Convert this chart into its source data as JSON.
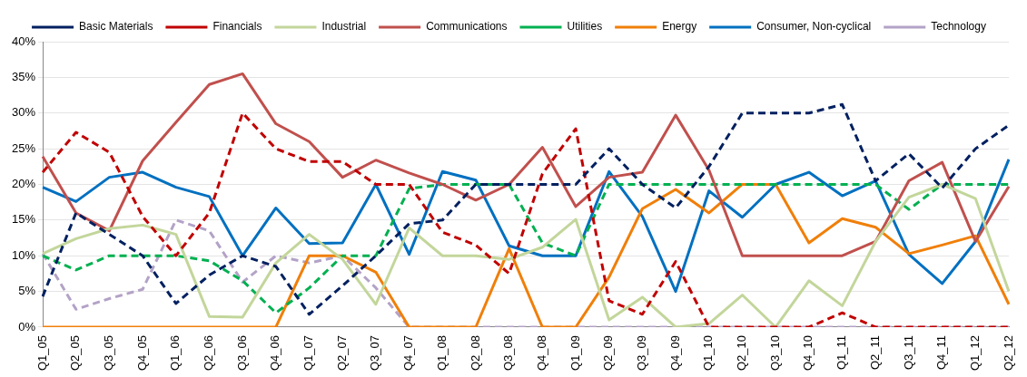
{
  "chart_data": {
    "type": "line",
    "categories": [
      "Q1_05",
      "Q2_05",
      "Q3_05",
      "Q4_05",
      "Q1_06",
      "Q2_06",
      "Q3_06",
      "Q4_06",
      "Q1_07",
      "Q2_07",
      "Q3_07",
      "Q4_07",
      "Q1_08",
      "Q2_08",
      "Q3_08",
      "Q4_08",
      "Q1_09",
      "Q2_09",
      "Q3_09",
      "Q4_09",
      "Q1_10",
      "Q2_10",
      "Q3_10",
      "Q4_10",
      "Q1_11",
      "Q2_11",
      "Q3_11",
      "Q4_11",
      "Q1_12",
      "Q2_12"
    ],
    "series": [
      {
        "name": "Basic Materials",
        "color": "#002060",
        "line_style": "dashed",
        "values": [
          4.3,
          16,
          13,
          10,
          3.3,
          7.3,
          10,
          8.5,
          1.8,
          5.8,
          10,
          14.5,
          15,
          20,
          20,
          20,
          20,
          25,
          20,
          16.7,
          22.5,
          30,
          30,
          30,
          31.2,
          20.5,
          24.3,
          19.5,
          25,
          28.3
        ]
      },
      {
        "name": "Financials",
        "color": "#c00000",
        "line_style": "dashed",
        "values": [
          21.7,
          27.3,
          24.5,
          15.5,
          10,
          16,
          30,
          25,
          23.2,
          23.2,
          20,
          20,
          13.3,
          11.5,
          7.5,
          21.5,
          27.8,
          3.7,
          1.8,
          9.2,
          0,
          0,
          0,
          0,
          2,
          0,
          0,
          0,
          0,
          0
        ]
      },
      {
        "name": "Industrial",
        "color": "#c3d69b",
        "line_style": "solid",
        "values": [
          10.3,
          12.4,
          13.8,
          14.3,
          13,
          1.5,
          1.4,
          9,
          13,
          9.5,
          3.2,
          13.9,
          10,
          10,
          9.5,
          11.2,
          15.1,
          1,
          4.2,
          0,
          0.5,
          4.5,
          0,
          6.5,
          3,
          12,
          18.2,
          20,
          18,
          5
        ]
      },
      {
        "name": "Communications",
        "color": "#c0504d",
        "line_style": "solid",
        "values": [
          23.9,
          16,
          13.5,
          23.3,
          28.7,
          34,
          35.5,
          28.5,
          26,
          21,
          23.4,
          21.6,
          20,
          17.8,
          20,
          25.2,
          16.9,
          21,
          21.7,
          29.7,
          22,
          10,
          10,
          10,
          10,
          12,
          20.5,
          23.1,
          12,
          19.7
        ]
      },
      {
        "name": "Utilities",
        "color": "#00b050",
        "line_style": "dashed",
        "values": [
          10,
          8,
          10,
          10,
          10,
          9.3,
          6.5,
          2,
          5.5,
          10,
          10,
          19.4,
          20,
          20,
          20,
          11.8,
          10,
          20,
          20,
          20,
          20,
          20,
          20,
          20,
          20,
          20,
          16.5,
          20,
          20,
          20
        ]
      },
      {
        "name": "Energy",
        "color": "#f07f09",
        "line_style": "solid",
        "values": [
          0,
          0,
          0,
          0,
          0,
          0,
          0,
          0,
          10,
          10,
          7.7,
          0,
          0,
          0,
          11,
          0,
          0,
          7,
          16.6,
          19.3,
          16,
          20,
          20,
          11.8,
          15.2,
          14,
          10.3,
          11.5,
          12.8,
          3.2
        ]
      },
      {
        "name": "Consumer, Non-cyclical",
        "color": "#0070c0",
        "line_style": "solid",
        "values": [
          19.6,
          17.6,
          21,
          21.7,
          19.6,
          18.3,
          10,
          16.7,
          11.7,
          11.8,
          20,
          10.2,
          21.8,
          20.6,
          11.4,
          10,
          10,
          21.8,
          15.5,
          5,
          19.1,
          15.4,
          20,
          21.7,
          18.4,
          20.5,
          10.2,
          6.1,
          12,
          23.5
        ]
      },
      {
        "name": "Technology",
        "color": "#b3a2c7",
        "line_style": "dashed",
        "values": [
          10.3,
          2.5,
          4,
          5.3,
          15,
          13.5,
          6.3,
          10,
          9,
          10,
          5.5,
          0,
          0,
          0,
          0,
          0,
          0,
          0,
          0,
          0,
          0,
          0,
          0,
          0,
          0,
          0,
          0,
          0,
          0,
          0
        ]
      }
    ],
    "ylim": [
      0,
      40
    ],
    "yticks": [
      {
        "value": 0,
        "label": "0%"
      },
      {
        "value": 5,
        "label": "5%"
      },
      {
        "value": 10,
        "label": "10%"
      },
      {
        "value": 15,
        "label": "15%"
      },
      {
        "value": 20,
        "label": "20%"
      },
      {
        "value": 25,
        "label": "25%"
      },
      {
        "value": 30,
        "label": "30%"
      },
      {
        "value": 35,
        "label": "35%"
      },
      {
        "value": 40,
        "label": "40%"
      }
    ],
    "grid": "y",
    "legend": "top",
    "marker": "none"
  }
}
